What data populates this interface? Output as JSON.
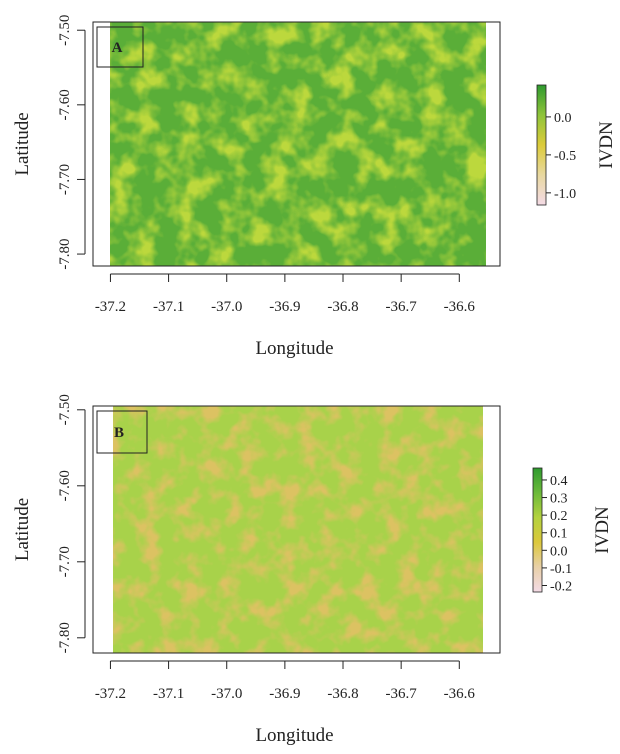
{
  "chart_data": [
    {
      "type": "raster",
      "label": "A",
      "xlabel": "Longitude",
      "ylabel": "Latitude",
      "xlim": [
        -37.23,
        -36.53
      ],
      "ylim": [
        -7.816,
        -7.489
      ],
      "xticks": [
        -37.2,
        -37.1,
        {
          "value": -37.0,
          "label": "-37.0"
        },
        -36.9,
        -36.8,
        -36.7,
        -36.6
      ],
      "yticks": [
        {
          "value": -7.5,
          "label": "-7.50"
        },
        {
          "value": -7.6,
          "label": "-7.60"
        },
        {
          "value": -7.7,
          "label": "-7.70"
        },
        {
          "value": -7.8,
          "label": "-7.80"
        }
      ],
      "colorbar": {
        "label": "IVDN",
        "lim": [
          -1.16,
          0.42
        ],
        "ticks": [
          {
            "value": 0,
            "label": "0.0"
          },
          {
            "value": -0.5,
            "label": "-0.5"
          },
          {
            "value": -1.0,
            "label": "-1.0"
          }
        ],
        "colors": [
          "#f4dbe6",
          "#e8d8a0",
          "#dccb3a",
          "#8fc43a",
          "#2f9a2f"
        ]
      },
      "raster_colors": [
        "#5aae38",
        "#bcd83c"
      ]
    },
    {
      "type": "raster",
      "label": "B",
      "xlabel": "Longitude",
      "ylabel": "Latitude",
      "xlim": [
        -37.23,
        -36.53
      ],
      "ylim": [
        -7.82,
        -7.495
      ],
      "xticks": [
        -37.2,
        -37.1,
        {
          "value": -37.0,
          "label": "-37.0"
        },
        -36.9,
        -36.8,
        -36.7,
        -36.6
      ],
      "yticks": [
        {
          "value": -7.5,
          "label": "-7.50"
        },
        {
          "value": -7.6,
          "label": "-7.60"
        },
        {
          "value": -7.7,
          "label": "-7.70"
        },
        {
          "value": -7.8,
          "label": "-7.80"
        }
      ],
      "colorbar": {
        "label": "IVDN",
        "lim": [
          -0.237,
          0.468
        ],
        "ticks": [
          0.4,
          0.3,
          0.2,
          0.1,
          {
            "value": 0,
            "label": "0.0"
          },
          -0.1,
          -0.2
        ],
        "colors": [
          "#f4dbe6",
          "#e8d0a8",
          "#dcc83c",
          "#b4d23e",
          "#6cba3a",
          "#2f9a2f"
        ]
      },
      "raster_colors": [
        "#a8d24a",
        "#dcc262"
      ]
    }
  ]
}
